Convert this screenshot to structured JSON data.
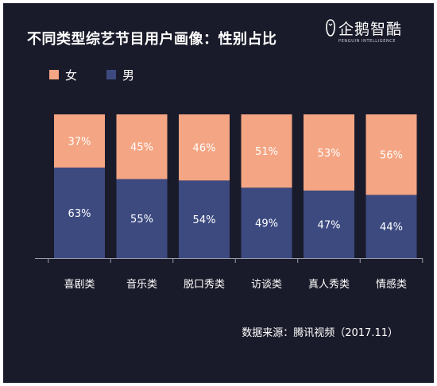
{
  "title": "不同类型综艺节目用户画像：性别占比",
  "logo": {
    "name_cn": "企鹅智酷",
    "name_en": "PENGUIN INTELLIGENCE"
  },
  "source": "数据来源：腾讯视频（2017.11）",
  "colors": {
    "female": "#f4a583",
    "male": "#3c4a80",
    "background": "#1a1b2a",
    "text": "#ffffff"
  },
  "chart_data": {
    "type": "bar",
    "stacked": true,
    "categories": [
      "喜剧类",
      "音乐类",
      "脱口秀类",
      "访谈类",
      "真人秀类",
      "情感类"
    ],
    "series": [
      {
        "name": "男",
        "values": [
          63,
          55,
          54,
          49,
          47,
          44
        ],
        "labels": [
          "63%",
          "55%",
          "54%",
          "49%",
          "47%",
          "44%"
        ],
        "color": "#3c4a80"
      },
      {
        "name": "女",
        "values": [
          37,
          45,
          46,
          51,
          53,
          56
        ],
        "labels": [
          "37%",
          "45%",
          "46%",
          "51%",
          "53%",
          "56%"
        ],
        "color": "#f4a583"
      }
    ],
    "legend": [
      {
        "name": "女",
        "color": "#f4a583"
      },
      {
        "name": "男",
        "color": "#3c4a80"
      }
    ],
    "legend_position": "top-left",
    "ylim": [
      0,
      100
    ],
    "grid": false,
    "axis": {
      "x_line": true
    }
  }
}
